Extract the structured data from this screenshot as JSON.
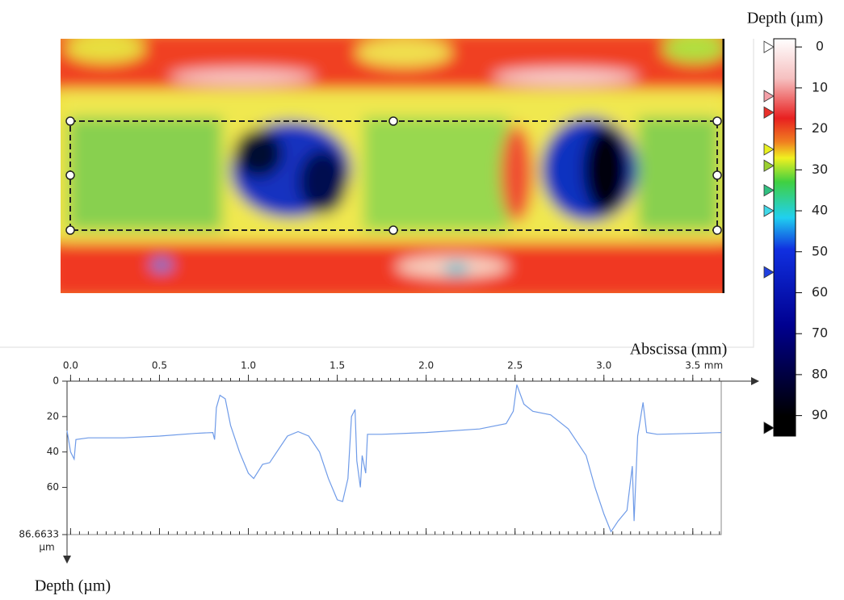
{
  "chart_data": [
    {
      "type": "line",
      "xlabel": "Abscissa (mm)",
      "ylabel": "Depth (µm)",
      "x_unit": "mm",
      "y_unit": "µm",
      "x": [
        -0.02,
        0.0,
        0.02,
        0.03,
        0.1,
        0.3,
        0.5,
        0.7,
        0.8,
        0.81,
        0.82,
        0.84,
        0.87,
        0.9,
        0.95,
        1.0,
        1.03,
        1.08,
        1.12,
        1.16,
        1.22,
        1.28,
        1.34,
        1.4,
        1.45,
        1.5,
        1.53,
        1.56,
        1.58,
        1.6,
        1.61,
        1.63,
        1.64,
        1.66,
        1.67,
        1.75,
        2.0,
        2.3,
        2.45,
        2.49,
        2.51,
        2.55,
        2.6,
        2.7,
        2.8,
        2.9,
        2.95,
        3.0,
        3.04,
        3.08,
        3.13,
        3.16,
        3.17,
        3.19,
        3.22,
        3.24,
        3.3,
        3.5,
        3.66
      ],
      "series": [
        {
          "color": "#6f9be8",
          "values": [
            28,
            40,
            44,
            33,
            32,
            32,
            31,
            29.5,
            29,
            33,
            15,
            8,
            10,
            25,
            40,
            52,
            55,
            47,
            46,
            40,
            31,
            28.5,
            31,
            40,
            55,
            67,
            68,
            55,
            20,
            16,
            45,
            60,
            42,
            52,
            30,
            30,
            29,
            27,
            24,
            17,
            2,
            13,
            17,
            19,
            27,
            42,
            60,
            75,
            85,
            79,
            73,
            48,
            79,
            31,
            12,
            29,
            30,
            29.5,
            29
          ]
        }
      ],
      "xlim": [
        -0.02,
        3.66
      ],
      "ylim": [
        0,
        86.6633
      ],
      "xticks": [
        {
          "value": 0,
          "label": "0.0"
        },
        0.5,
        {
          "value": 1,
          "label": "1.0"
        },
        1.5,
        {
          "value": 2,
          "label": "2.0"
        },
        2.5,
        {
          "value": 3,
          "label": "3.0"
        },
        3.5
      ],
      "yticks": [
        0,
        20,
        40,
        60,
        86.6633
      ]
    },
    {
      "type": "colorbar",
      "title": "Depth (µm)",
      "clim": [
        -2,
        95
      ],
      "ticks": [
        0,
        10,
        20,
        30,
        40,
        50,
        60,
        70,
        80,
        90
      ],
      "markers": [
        {
          "value": 0,
          "color": "#ffffff"
        },
        {
          "value": 12,
          "color": "#f4a0a8"
        },
        {
          "value": 16,
          "color": "#e8302a"
        },
        {
          "value": 25,
          "color": "#e8f020"
        },
        {
          "value": 29,
          "color": "#9ad030"
        },
        {
          "value": 35,
          "color": "#30c080"
        },
        {
          "value": 40,
          "color": "#40d8e8"
        },
        {
          "value": 55,
          "color": "#2040e0"
        },
        {
          "value": 93,
          "color": "#000000"
        }
      ]
    }
  ]
}
